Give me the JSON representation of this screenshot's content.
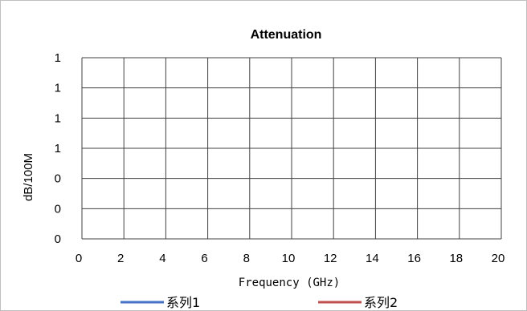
{
  "chart_data": {
    "type": "line",
    "title": "Attenuation",
    "xlabel": "Frequency (GHz)",
    "ylabel": "dB/100M",
    "x_ticks": [
      "0",
      "2",
      "4",
      "6",
      "8",
      "10",
      "12",
      "14",
      "16",
      "18",
      "20"
    ],
    "y_ticks": [
      "0",
      "0",
      "0",
      "1",
      "1",
      "1",
      "1"
    ],
    "xlim": [
      0,
      20
    ],
    "ylim": [
      0,
      1.2
    ],
    "grid": true,
    "legend_position": "bottom",
    "series": [
      {
        "name": "系列1",
        "color": "#4472c4",
        "x": [],
        "values": []
      },
      {
        "name": "系列2",
        "color": "#c0504d",
        "x": [],
        "values": []
      }
    ]
  },
  "colors": {
    "grid": "#404040",
    "frame": "#bfbfbf"
  }
}
